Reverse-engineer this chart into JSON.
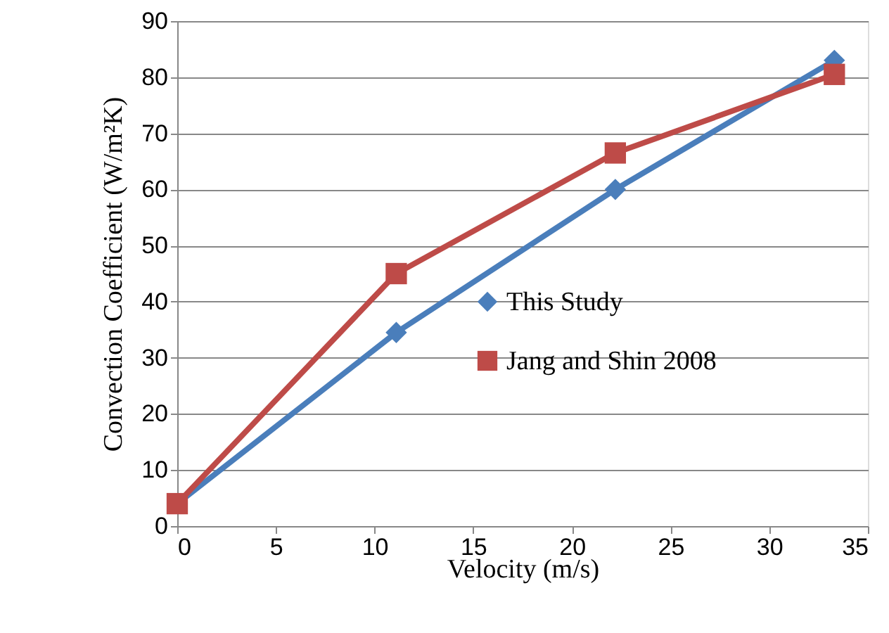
{
  "chart_data": {
    "type": "line",
    "xlabel": "Velocity (m/s)",
    "ylabel": "Convection Coefficient (W/m²K)",
    "x": [
      0,
      11.1,
      22.2,
      33.3
    ],
    "series": [
      {
        "name": "This Study",
        "color": "#4a7ebb",
        "marker": "diamond",
        "values": [
          4,
          34.5,
          60,
          83
        ]
      },
      {
        "name": "Jang and Shin 2008",
        "color": "#be4b48",
        "marker": "square",
        "values": [
          4,
          45,
          66.5,
          80.5
        ]
      }
    ],
    "xlim": [
      0,
      35
    ],
    "xticks": [
      0,
      5,
      10,
      15,
      20,
      25,
      30,
      35
    ],
    "ylim": [
      0,
      90
    ],
    "yticks": [
      0,
      10,
      20,
      30,
      40,
      50,
      60,
      70,
      80,
      90
    ],
    "grid": "y",
    "legend": "right"
  }
}
